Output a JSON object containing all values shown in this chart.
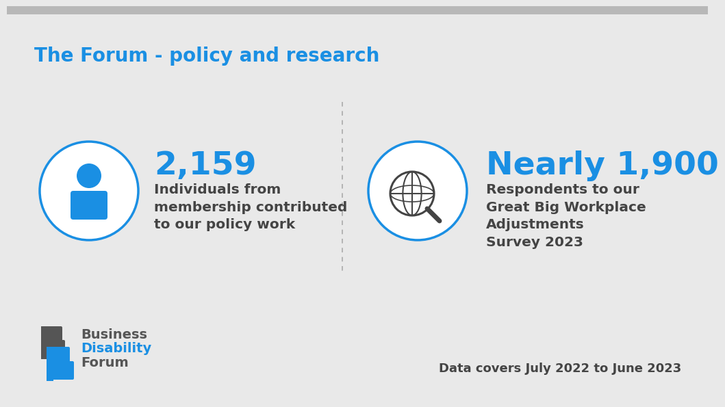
{
  "background_color": "#e9e9e9",
  "top_bar_color": "#b0b0b0",
  "title": "The Forum - policy and research",
  "title_color": "#1a8fe3",
  "title_fontsize": 20,
  "title_fontweight": "bold",
  "stat1_number": "2,159",
  "stat1_desc": "Individuals from\nmembership contributed\nto our policy work",
  "stat2_number": "Nearly 1,900",
  "stat2_desc": "Respondents to our\nGreat Big Workplace\nAdjustments\nSurvey 2023",
  "stat_number_color": "#1a8fe3",
  "stat_number_fontsize": 34,
  "stat_desc_color": "#444444",
  "stat_desc_fontsize": 14.5,
  "circle_color": "#1a8fe3",
  "icon_color": "#1a8fe3",
  "icon2_color": "#444444",
  "divider_color": "#aaaaaa",
  "footer_logo_text1": "Business",
  "footer_logo_text2": "Disability",
  "footer_logo_text3": "Forum",
  "footer_date_text": "Data covers July 2022 to June 2023",
  "footer_text_color": "#444444",
  "footer_logo_dark": "#555555",
  "footer_logo_blue": "#1a8fe3",
  "footer_fontsize": 13
}
